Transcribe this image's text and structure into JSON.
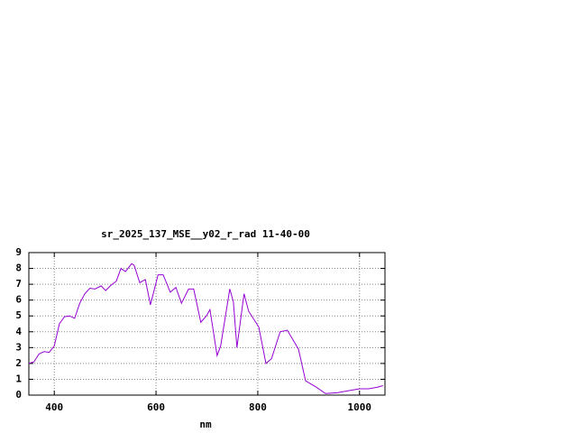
{
  "chart_data": {
    "type": "line",
    "title": "sr_2025_137_MSE__y02_r_rad 11-40-00",
    "x_label": "nm",
    "x": [
      350,
      360,
      370,
      380,
      390,
      400,
      410,
      420,
      430,
      440,
      450,
      460,
      470,
      480,
      492,
      501,
      510,
      522,
      531,
      540,
      552,
      557,
      568,
      579,
      589,
      604,
      614,
      628,
      639,
      650,
      664,
      674,
      688,
      699,
      706,
      720,
      727,
      745,
      752,
      759,
      773,
      782,
      802,
      816,
      827,
      844,
      858,
      880,
      894,
      915,
      933,
      956,
      982,
      1000,
      1018,
      1035,
      1046
    ],
    "values": [
      2.0,
      2.1,
      2.6,
      2.75,
      2.7,
      3.1,
      4.5,
      4.95,
      5.0,
      4.85,
      5.8,
      6.4,
      6.75,
      6.7,
      6.9,
      6.6,
      6.9,
      7.2,
      8.0,
      7.8,
      8.3,
      8.2,
      7.1,
      7.3,
      5.7,
      7.6,
      7.6,
      6.5,
      6.8,
      5.8,
      6.7,
      6.7,
      4.6,
      5.0,
      5.4,
      2.5,
      3.1,
      6.7,
      5.9,
      3.0,
      6.4,
      5.3,
      4.3,
      2.0,
      2.3,
      4.0,
      4.1,
      2.9,
      0.9,
      0.5,
      0.1,
      0.15,
      0.3,
      0.4,
      0.4,
      0.5,
      0.6
    ],
    "color": "#9400d3",
    "xlim": [
      350,
      1050
    ],
    "xticks": [
      400,
      600,
      800,
      1000
    ],
    "ylim": [
      0,
      9
    ],
    "yticks": [
      0,
      1,
      2,
      3,
      4,
      5,
      6,
      7,
      8,
      9
    ],
    "grid": true
  }
}
